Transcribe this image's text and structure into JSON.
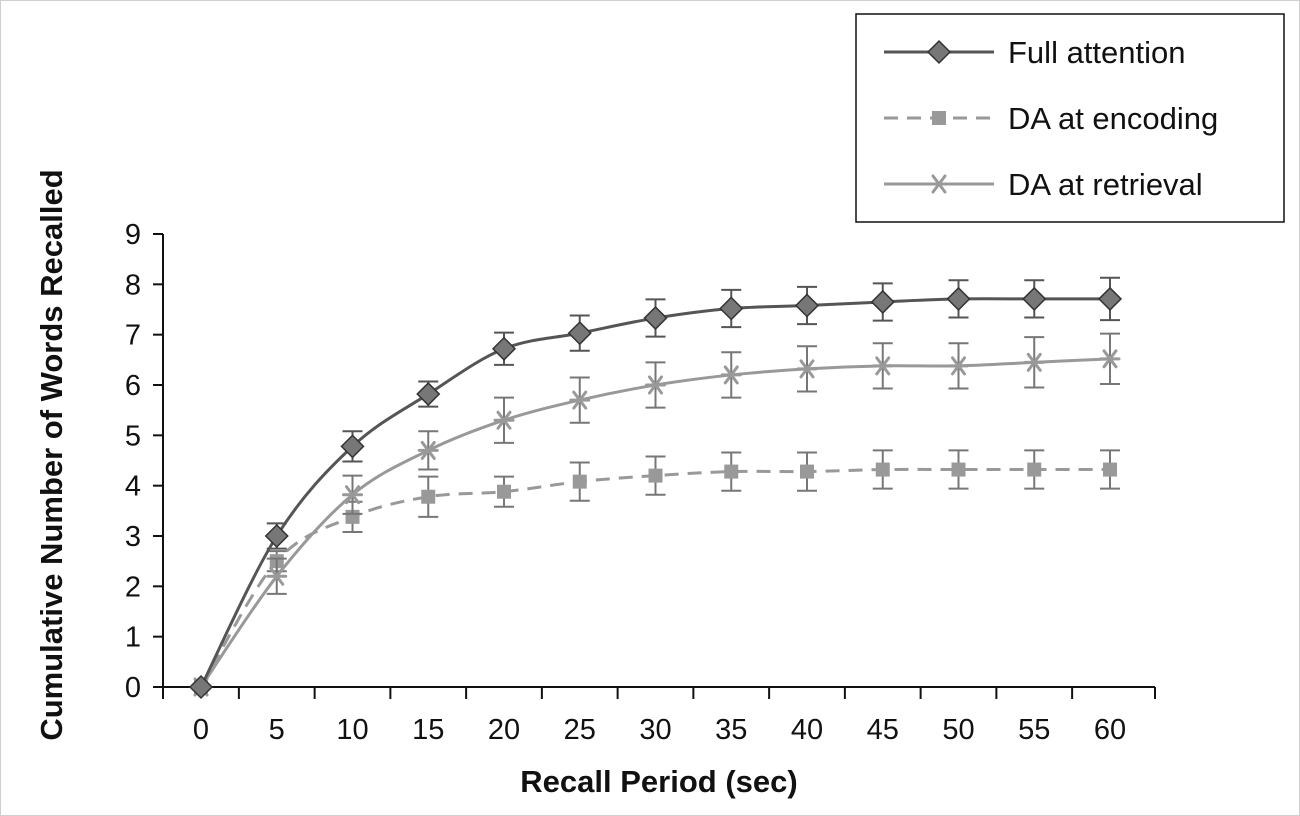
{
  "chart_data": {
    "type": "line",
    "xlabel": "Recall Period (sec)",
    "ylabel": "Cumulative Number of Words Recalled",
    "x": [
      0,
      5,
      10,
      15,
      20,
      25,
      30,
      35,
      40,
      45,
      50,
      55,
      60
    ],
    "xlim": [
      0,
      60
    ],
    "ylim": [
      0,
      9
    ],
    "yticks": [
      0,
      1,
      2,
      3,
      4,
      5,
      6,
      7,
      8,
      9
    ],
    "grid": false,
    "legend_position": "top-right",
    "series": [
      {
        "name": "Full attention",
        "marker": "diamond",
        "dash": "solid",
        "color": "#555555",
        "values": [
          0,
          3.0,
          4.78,
          5.82,
          6.72,
          7.03,
          7.33,
          7.52,
          7.58,
          7.65,
          7.71,
          7.71,
          7.71
        ],
        "errors": [
          0,
          0.25,
          0.3,
          0.25,
          0.32,
          0.35,
          0.37,
          0.37,
          0.37,
          0.37,
          0.37,
          0.37,
          0.42
        ]
      },
      {
        "name": "DA at encoding",
        "marker": "square",
        "dash": "dashed",
        "color": "#999999",
        "values": [
          0,
          2.5,
          3.38,
          3.78,
          3.88,
          4.08,
          4.2,
          4.28,
          4.28,
          4.32,
          4.32,
          4.32,
          4.32
        ],
        "errors": [
          0,
          0.2,
          0.3,
          0.4,
          0.3,
          0.38,
          0.38,
          0.38,
          0.38,
          0.38,
          0.38,
          0.38,
          0.38
        ]
      },
      {
        "name": "DA at retrieval",
        "marker": "asterisk",
        "dash": "solid",
        "color": "#999999",
        "values": [
          0,
          2.2,
          3.82,
          4.7,
          5.3,
          5.7,
          6.0,
          6.2,
          6.32,
          6.38,
          6.38,
          6.45,
          6.52
        ],
        "errors": [
          0,
          0.35,
          0.38,
          0.38,
          0.45,
          0.45,
          0.45,
          0.45,
          0.45,
          0.45,
          0.45,
          0.5,
          0.5
        ]
      }
    ]
  }
}
